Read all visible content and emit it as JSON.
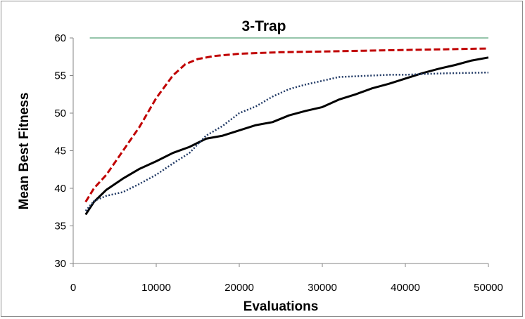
{
  "chart_data": {
    "type": "line",
    "title": "3-Trap",
    "xlabel": "Evaluations",
    "ylabel": "Mean Best Fitness",
    "xlim": [
      0,
      50000
    ],
    "ylim": [
      30,
      60
    ],
    "x_ticks": [
      "0",
      "10000",
      "20000",
      "30000",
      "40000",
      "50000"
    ],
    "y_ticks": [
      "30",
      "35",
      "40",
      "45",
      "50",
      "55",
      "60"
    ],
    "grid": false,
    "legend": "none",
    "series": [
      {
        "style": "solid",
        "color": "#000000",
        "points": [
          [
            1500,
            36.5
          ],
          [
            2500,
            38.2
          ],
          [
            4000,
            39.8
          ],
          [
            6000,
            41.3
          ],
          [
            8000,
            42.6
          ],
          [
            10000,
            43.6
          ],
          [
            12000,
            44.7
          ],
          [
            14000,
            45.5
          ],
          [
            16000,
            46.6
          ],
          [
            18000,
            47.0
          ],
          [
            20000,
            47.7
          ],
          [
            22000,
            48.4
          ],
          [
            24000,
            48.8
          ],
          [
            26000,
            49.7
          ],
          [
            28000,
            50.3
          ],
          [
            30000,
            50.8
          ],
          [
            32000,
            51.8
          ],
          [
            34000,
            52.5
          ],
          [
            36000,
            53.3
          ],
          [
            38000,
            53.9
          ],
          [
            40000,
            54.6
          ],
          [
            42000,
            55.3
          ],
          [
            44000,
            55.9
          ],
          [
            46000,
            56.4
          ],
          [
            48000,
            57.0
          ],
          [
            50000,
            57.4
          ]
        ]
      },
      {
        "style": "dashed",
        "color": "#c00000",
        "points": [
          [
            1500,
            38.2
          ],
          [
            2500,
            40.0
          ],
          [
            4000,
            41.8
          ],
          [
            6000,
            45.0
          ],
          [
            8000,
            48.2
          ],
          [
            10000,
            52.0
          ],
          [
            12000,
            55.0
          ],
          [
            13500,
            56.5
          ],
          [
            15000,
            57.2
          ],
          [
            17000,
            57.6
          ],
          [
            20000,
            57.9
          ],
          [
            25000,
            58.1
          ],
          [
            30000,
            58.2
          ],
          [
            35000,
            58.3
          ],
          [
            40000,
            58.4
          ],
          [
            45000,
            58.5
          ],
          [
            50000,
            58.6
          ]
        ]
      },
      {
        "style": "dotted",
        "color": "#1f3864",
        "points": [
          [
            1500,
            37.0
          ],
          [
            2500,
            38.3
          ],
          [
            4000,
            39.0
          ],
          [
            6000,
            39.5
          ],
          [
            8000,
            40.6
          ],
          [
            10000,
            41.8
          ],
          [
            12000,
            43.3
          ],
          [
            14000,
            44.7
          ],
          [
            16000,
            47.0
          ],
          [
            18000,
            48.3
          ],
          [
            20000,
            50.0
          ],
          [
            22000,
            50.9
          ],
          [
            24000,
            52.2
          ],
          [
            26000,
            53.2
          ],
          [
            28000,
            53.8
          ],
          [
            30000,
            54.3
          ],
          [
            32000,
            54.8
          ],
          [
            34000,
            54.9
          ],
          [
            36000,
            55.0
          ],
          [
            38000,
            55.1
          ],
          [
            40000,
            55.1
          ],
          [
            42000,
            55.2
          ],
          [
            45000,
            55.3
          ],
          [
            50000,
            55.4
          ]
        ]
      },
      {
        "style": "solid-thin",
        "color": "#2e8b57",
        "points": [
          [
            2000,
            60.0
          ],
          [
            50000,
            60.0
          ]
        ]
      }
    ]
  }
}
